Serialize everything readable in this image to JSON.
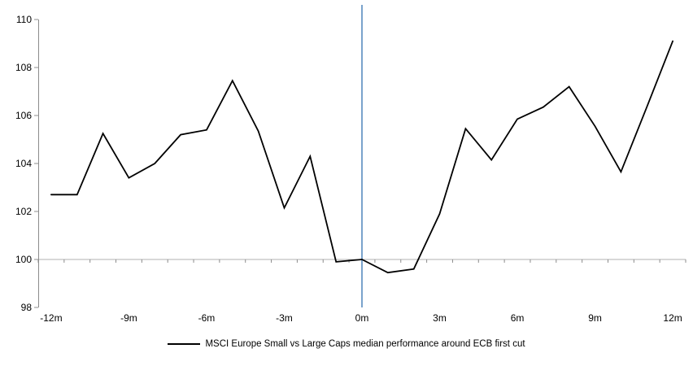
{
  "chart_data": {
    "type": "line",
    "title": "",
    "legend": "MSCI Europe Small vs Large Caps median performance around ECB first cut",
    "xlabel": "",
    "ylabel": "",
    "x_tick_labels": [
      "-12m",
      "-9m",
      "-6m",
      "-3m",
      "0m",
      "3m",
      "6m",
      "9m",
      "12m"
    ],
    "y_tick_labels": [
      "110",
      "108",
      "106",
      "104",
      "102",
      "100",
      "98"
    ],
    "ylim": [
      98,
      110
    ],
    "y_tick_step": 2,
    "baseline_value": 100,
    "event_marker_x": 0,
    "grid": "none",
    "legend_position": "bottom-center",
    "series": [
      {
        "name": "MSCI Europe Small vs Large Caps median performance around ECB first cut",
        "x": [
          -12,
          -11,
          -10,
          -9,
          -8,
          -7,
          -6,
          -5,
          -4,
          -3,
          -2,
          -1,
          0,
          1,
          2,
          3,
          4,
          5,
          6,
          7,
          8,
          9,
          10,
          11,
          12
        ],
        "values": [
          102.7,
          102.7,
          105.25,
          103.4,
          104.0,
          105.2,
          105.4,
          107.45,
          105.35,
          102.15,
          104.3,
          99.9,
          100.0,
          99.45,
          99.6,
          101.9,
          105.45,
          104.15,
          105.85,
          106.35,
          107.2,
          105.55,
          103.65,
          106.35,
          109.1
        ]
      }
    ],
    "colors": {
      "series": "#000000",
      "event_marker": "#7aa3cc",
      "baseline": "#b0b0b0",
      "axis": "#8c8c8c",
      "tick": "#8c8c8c",
      "text": "#000000",
      "background": "#ffffff"
    }
  }
}
